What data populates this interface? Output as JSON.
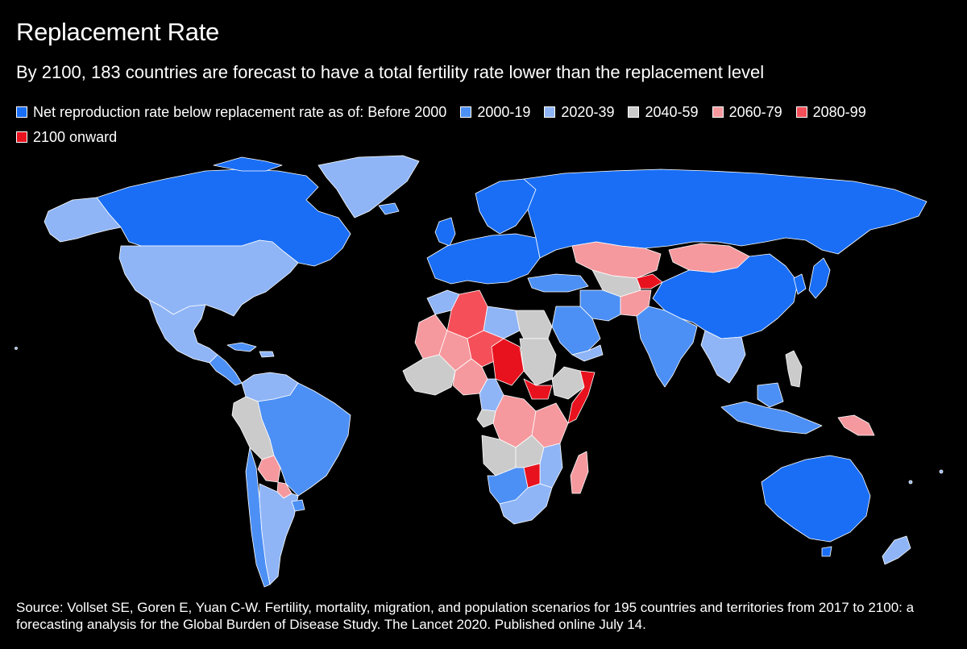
{
  "title": "Replacement Rate",
  "subtitle": "By 2100, 183 countries are forecast to have a total fertility rate lower than the replacement level",
  "legend": {
    "items": [
      {
        "label": "Net reproduction rate below replacement rate as of: Before 2000",
        "color": "#1a6ef5"
      },
      {
        "label": "2000-19",
        "color": "#4d90f5"
      },
      {
        "label": "2020-39",
        "color": "#8fb5f7"
      },
      {
        "label": "2040-59",
        "color": "#cbcbcb"
      },
      {
        "label": "2060-79",
        "color": "#f5999e"
      },
      {
        "label": "2080-99",
        "color": "#f5505a"
      },
      {
        "label": "2100 onward",
        "color": "#e8121e"
      }
    ]
  },
  "source": "Source: Vollset SE, Goren E, Yuan C-W. Fertility, mortality, migration, and population scenarios for 195 countries and territories from 2017 to 2100: a forecasting analysis for the Global Burden of Disease Study. The Lancet 2020. Published online July 14.",
  "colors": {
    "background": "#000000",
    "border": "#ffffff"
  }
}
